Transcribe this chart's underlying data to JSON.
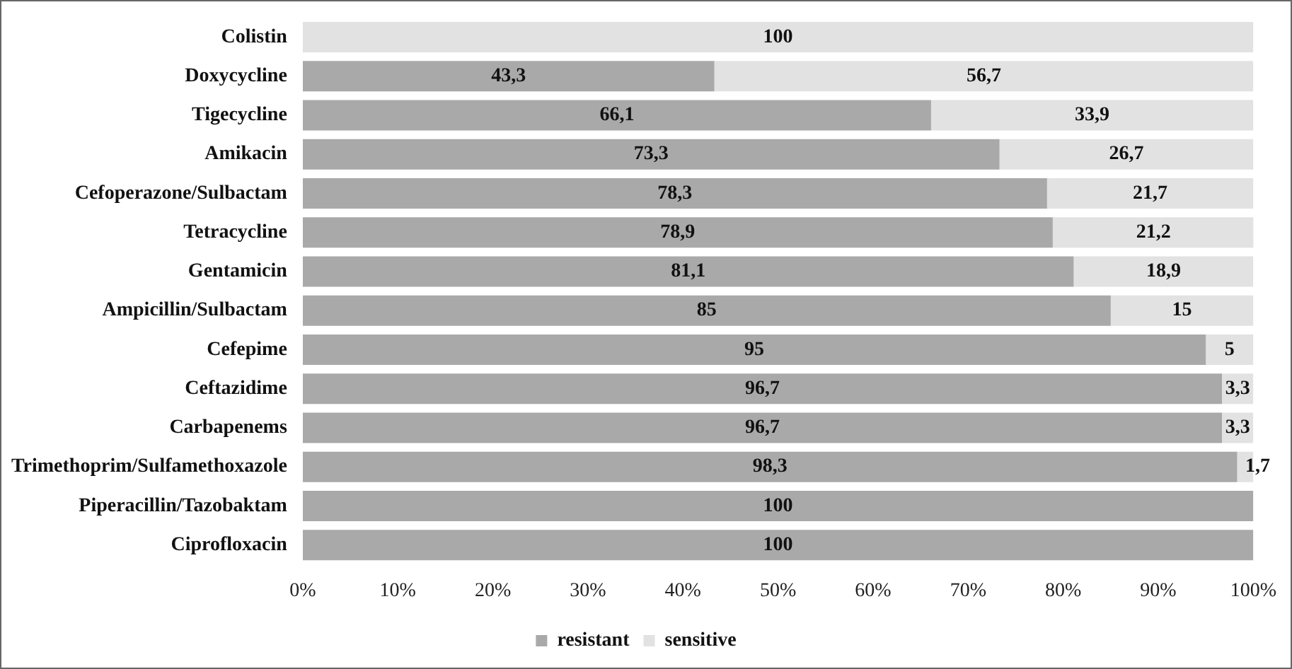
{
  "chart_data": {
    "type": "bar",
    "orientation": "horizontal",
    "stacked": true,
    "categories": [
      "Colistin",
      "Doxycycline",
      "Tigecycline",
      "Amikacin",
      "Cefoperazone/Sulbactam",
      "Tetracycline",
      "Gentamicin",
      "Ampicillin/Sulbactam",
      "Cefepime",
      "Ceftazidime",
      "Carbapenems",
      "Trimethoprim/Sulfamethoxazole",
      "Piperacillin/Tazobaktam",
      "Ciprofloxacin"
    ],
    "series": [
      {
        "name": "resistant",
        "color": "#a9a9a9",
        "values": [
          0,
          43.3,
          66.1,
          73.3,
          78.3,
          78.9,
          81.1,
          85,
          95,
          96.7,
          96.7,
          98.3,
          100,
          100
        ],
        "value_labels": [
          null,
          "43,3",
          "66,1",
          "73,3",
          "78,3",
          "78,9",
          "81,1",
          "85",
          "95",
          "96,7",
          "96,7",
          "98,3",
          "100",
          "100"
        ]
      },
      {
        "name": "sensitive",
        "color": "#e2e2e2",
        "values": [
          100,
          56.7,
          33.9,
          26.7,
          21.7,
          21.2,
          18.9,
          15,
          5,
          3.3,
          3.3,
          1.7,
          0,
          0
        ],
        "value_labels": [
          "100",
          "56,7",
          "33,9",
          "26,7",
          "21,7",
          "21,2",
          "18,9",
          "15",
          "5",
          "3,3",
          "3,3",
          "1,7",
          null,
          null
        ]
      }
    ],
    "xlim": [
      0,
      100
    ],
    "xticks": [
      {
        "value": 0,
        "label": "0%"
      },
      {
        "value": 10,
        "label": "10%"
      },
      {
        "value": 20,
        "label": "20%"
      },
      {
        "value": 30,
        "label": "30%"
      },
      {
        "value": 40,
        "label": "40%"
      },
      {
        "value": 50,
        "label": "50%"
      },
      {
        "value": 60,
        "label": "60%"
      },
      {
        "value": 70,
        "label": "70%"
      },
      {
        "value": 80,
        "label": "80%"
      },
      {
        "value": 90,
        "label": "90%"
      },
      {
        "value": 100,
        "label": "100%"
      }
    ],
    "grid": false,
    "legend": "bottom"
  }
}
